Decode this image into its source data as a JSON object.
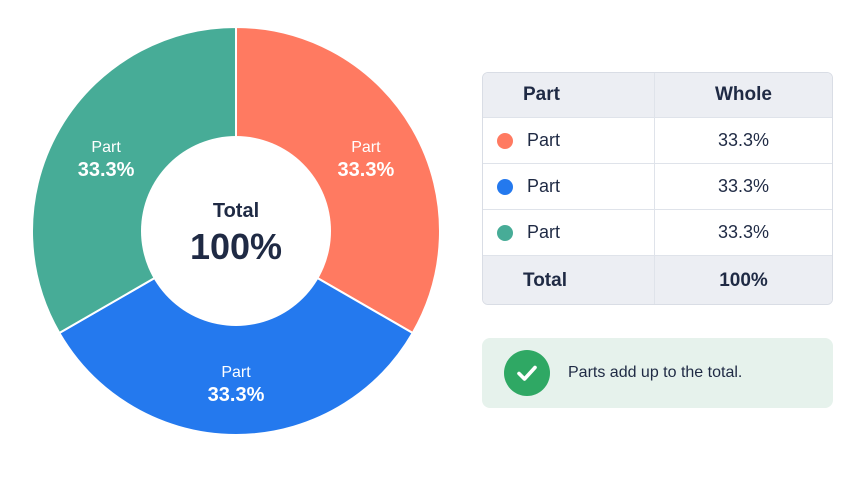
{
  "chart_data": {
    "type": "pie",
    "categories": [
      "Part",
      "Part",
      "Part"
    ],
    "values": [
      33.3,
      33.3,
      33.3
    ],
    "value_labels": [
      "33.3%",
      "33.3%",
      "33.3%"
    ],
    "colors": [
      "#ff7a61",
      "#2479ee",
      "#47ac97"
    ],
    "center": {
      "title": "Total",
      "value": "100%"
    },
    "donut": true
  },
  "table": {
    "headers": {
      "part": "Part",
      "whole": "Whole"
    },
    "rows": [
      {
        "part": "Part",
        "whole": "33.3%",
        "color": "#ff7a61"
      },
      {
        "part": "Part",
        "whole": "33.3%",
        "color": "#2479ee"
      },
      {
        "part": "Part",
        "whole": "33.3%",
        "color": "#47ac97"
      }
    ],
    "total": {
      "part": "Total",
      "whole": "100%"
    }
  },
  "note": {
    "icon": "check-circle-icon",
    "text": "Parts add up to the total.",
    "color": "#2fa864"
  }
}
